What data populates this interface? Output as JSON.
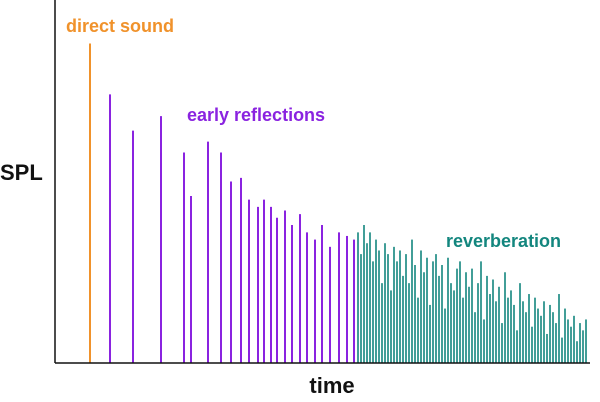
{
  "chart_data": {
    "type": "bar",
    "xlabel": "time",
    "ylabel": "SPL",
    "ylim": [
      0,
      100
    ],
    "grid": false,
    "colors": {
      "direct": "#F0922B",
      "early": "#8A23E0",
      "reverb": "#13867E",
      "axis": "#111111"
    },
    "series": [
      {
        "name": "direct sound",
        "color": "#F0922B",
        "x": [
          90
        ],
        "values": [
          88
        ]
      },
      {
        "name": "early reflections",
        "color": "#8A23E0",
        "x": [
          110,
          133,
          161,
          184,
          191,
          208,
          221,
          231,
          241,
          249,
          258,
          264,
          271,
          277,
          285,
          292,
          300,
          307,
          315,
          322,
          330,
          339,
          347,
          354
        ],
        "values": [
          74,
          64,
          68,
          58,
          46,
          61,
          58,
          50,
          51,
          45,
          43,
          45,
          43,
          40,
          42,
          38,
          41,
          36,
          34,
          38,
          32,
          36,
          35,
          34
        ]
      },
      {
        "name": "reverberation",
        "x": [
          358,
          361,
          364,
          367,
          370,
          373,
          376,
          379,
          382,
          385,
          388,
          391,
          394,
          397,
          400,
          403,
          406,
          409,
          412,
          415,
          418,
          421,
          424,
          427,
          430,
          433,
          436,
          439,
          442,
          445,
          448,
          451,
          454,
          457,
          460,
          463,
          466,
          469,
          472,
          475,
          478,
          481,
          484,
          487,
          490,
          493,
          496,
          499,
          502,
          505,
          508,
          511,
          514,
          517,
          520,
          523,
          526,
          529,
          532,
          535,
          538,
          541,
          544,
          547,
          550,
          553,
          556,
          559,
          562,
          565,
          568,
          571,
          574,
          577,
          580,
          583,
          586
        ],
        "values": [
          36,
          30,
          38,
          33,
          36,
          28,
          34,
          31,
          22,
          33,
          30,
          20,
          32,
          28,
          31,
          24,
          30,
          22,
          34,
          27,
          18,
          31,
          25,
          29,
          16,
          28,
          30,
          24,
          27,
          15,
          29,
          22,
          20,
          26,
          28,
          18,
          25,
          21,
          26,
          14,
          22,
          28,
          12,
          24,
          19,
          23,
          17,
          21,
          11,
          25,
          18,
          20,
          16,
          9,
          22,
          17,
          14,
          19,
          10,
          18,
          15,
          13,
          17,
          8,
          16,
          14,
          11,
          19,
          7,
          15,
          12,
          10,
          13,
          6,
          11,
          9,
          12
        ]
      }
    ],
    "annotations": [
      {
        "text": "direct sound",
        "series": "direct"
      },
      {
        "text": "early reflections",
        "series": "early"
      },
      {
        "text": "reverberation",
        "series": "reverb"
      }
    ]
  }
}
